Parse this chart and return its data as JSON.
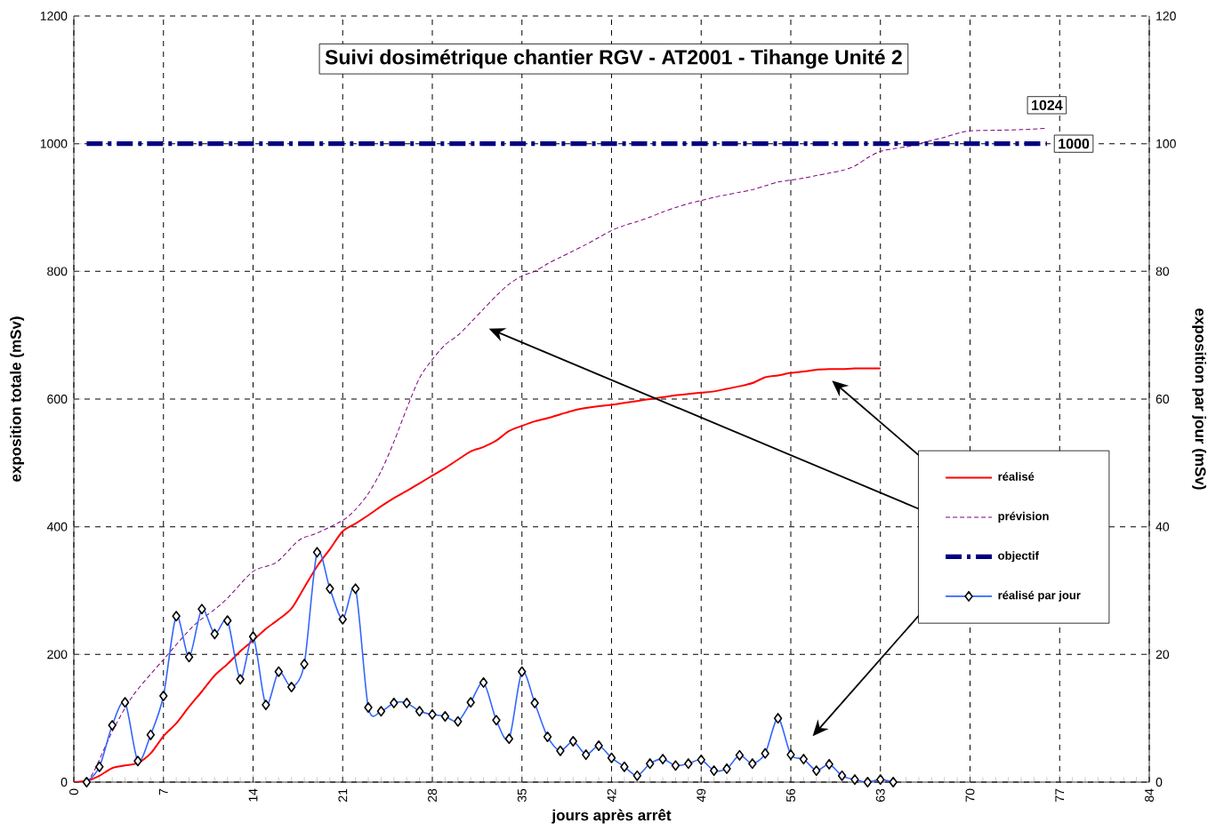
{
  "chart_data": {
    "type": "line",
    "title": "Suivi dosimétrique chantier RGV - AT2001 - Tihange Unité 2",
    "xlabel": "jours après arrêt",
    "ylabel": "exposition totale (mSv)",
    "y2label": "exposition par jour (mSv)",
    "xlim": [
      0,
      84
    ],
    "xticks": [
      0,
      7,
      14,
      21,
      28,
      35,
      42,
      49,
      56,
      63,
      70,
      77,
      84
    ],
    "ylim": [
      0,
      1200
    ],
    "yticks": [
      0,
      200,
      400,
      600,
      800,
      1000,
      1200
    ],
    "y2lim": [
      0,
      120
    ],
    "y2ticks": [
      0,
      20,
      40,
      60,
      80,
      100,
      120
    ],
    "grid": true,
    "legend": "right",
    "series": [
      {
        "name": "réalisé",
        "color": "#ff0000",
        "line_style": "solid",
        "x": [
          0,
          1,
          2,
          3,
          4,
          5,
          6,
          7,
          8,
          9,
          10,
          11,
          12,
          13,
          14,
          15,
          16,
          17,
          18,
          19,
          20,
          21,
          22,
          23,
          24,
          25,
          26,
          27,
          28,
          29,
          30,
          31,
          32,
          33,
          34,
          35,
          36,
          37,
          38,
          39,
          40,
          41,
          42,
          43,
          44,
          45,
          46,
          47,
          48,
          49,
          50,
          51,
          52,
          53,
          54,
          55,
          56,
          57,
          58,
          59,
          60,
          61,
          62,
          63
        ],
        "values": [
          0,
          2,
          10,
          22,
          26,
          30,
          45,
          72,
          92,
          118,
          142,
          167,
          185,
          205,
          222,
          240,
          255,
          272,
          305,
          338,
          365,
          393,
          405,
          418,
          432,
          445,
          456,
          468,
          480,
          492,
          505,
          518,
          525,
          535,
          550,
          558,
          565,
          570,
          576,
          582,
          586,
          589,
          591,
          594,
          597,
          600,
          603,
          606,
          608,
          610,
          612,
          616,
          620,
          625,
          634,
          637,
          641,
          643,
          646,
          647,
          647,
          648,
          648,
          648
        ]
      },
      {
        "name": "prévision",
        "color": "#800080",
        "line_style": "dashed",
        "x": [
          1,
          1.6,
          3,
          4.6,
          7,
          9.3,
          10.9,
          12,
          14,
          15.8,
          17.6,
          19,
          21,
          22,
          23,
          24,
          25,
          26,
          27,
          28,
          29,
          30,
          31,
          32,
          33,
          34,
          35,
          36,
          37,
          38,
          39,
          40,
          41,
          42,
          43,
          44,
          45,
          46,
          47,
          48,
          49,
          50,
          51,
          52,
          53,
          54,
          55,
          56,
          57,
          58,
          59,
          60,
          61,
          62,
          63,
          64,
          65,
          66,
          67,
          68,
          69,
          70,
          72,
          74,
          76
        ],
        "values": [
          0,
          18,
          79,
          135,
          192,
          244,
          269,
          288,
          330,
          344,
          379,
          390,
          410,
          427,
          452,
          487,
          533,
          585,
          633,
          662,
          685,
          700,
          720,
          741,
          762,
          780,
          793,
          800,
          812,
          822,
          832,
          842,
          853,
          864,
          872,
          878,
          885,
          893,
          900,
          906,
          911,
          916,
          920,
          924,
          928,
          934,
          940,
          943,
          946,
          950,
          954,
          958,
          965,
          978,
          988,
          992,
          995,
          1000,
          1005,
          1010,
          1016,
          1020,
          1021,
          1022,
          1024
        ]
      },
      {
        "name": "objectif",
        "color": "#000080",
        "line_style": "dashed",
        "x": [
          1,
          76
        ],
        "values": [
          1000,
          1000
        ]
      },
      {
        "name": "réalisé par jour",
        "color": "#3366ff",
        "line_style": "solid",
        "marker": "diamond",
        "axis": "y2",
        "x": [
          1,
          2,
          3,
          4,
          5,
          6,
          7,
          8,
          9,
          10,
          11,
          12,
          13,
          14,
          15,
          16,
          17,
          18,
          19,
          20,
          21,
          22,
          23,
          24,
          25,
          26,
          27,
          28,
          29,
          30,
          31,
          32,
          33,
          34,
          35,
          36,
          37,
          38,
          39,
          40,
          41,
          42,
          43,
          44,
          45,
          46,
          47,
          48,
          49,
          50,
          51,
          52,
          53,
          54,
          55,
          56,
          57,
          58,
          59,
          60,
          61,
          62,
          63,
          64
        ],
        "values": [
          0,
          2.4,
          8.9,
          12.5,
          3.3,
          7.4,
          13.5,
          26,
          19.6,
          27.1,
          23.2,
          25.3,
          16.1,
          22.8,
          12.1,
          17.3,
          14.9,
          18.5,
          36,
          30.3,
          25.5,
          30.3,
          11.7,
          11.1,
          12.4,
          12.4,
          11.1,
          10.6,
          10.3,
          9.5,
          12.5,
          15.6,
          9.7,
          6.8,
          17.3,
          12.4,
          7.1,
          4.9,
          6.4,
          4.3,
          5.7,
          3.8,
          2.4,
          1,
          2.9,
          3.6,
          2.6,
          2.9,
          3.5,
          1.8,
          2.1,
          4.2,
          2.9,
          4.5,
          10,
          4.3,
          3.6,
          1.8,
          2.8,
          1,
          0.4,
          0,
          0.4,
          0
        ]
      }
    ],
    "annotations": [
      {
        "text": "1000",
        "x": 76,
        "y": 1000
      },
      {
        "text": "1024",
        "x": 76,
        "y": 1024
      }
    ]
  }
}
